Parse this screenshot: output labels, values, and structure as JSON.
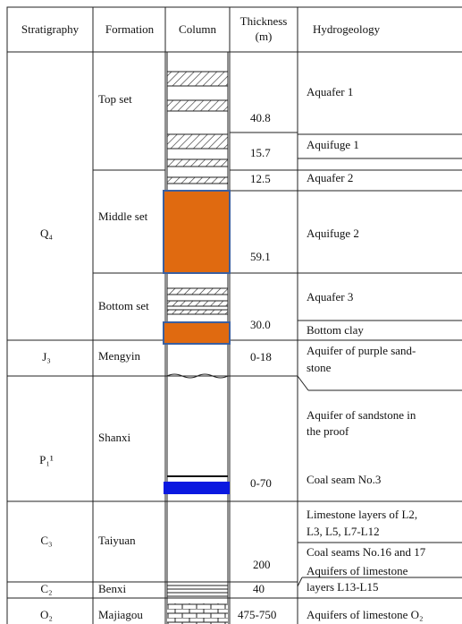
{
  "header": {
    "stratigraphy": "Stratigraphy",
    "formation": "Formation",
    "column": "Column",
    "thickness": [
      "Thickness",
      "(m)"
    ],
    "hydrogeology": "Hydrogeology"
  },
  "strata": [
    "Q₄",
    "J₃",
    "P₁¹",
    "C₃",
    "C₂",
    "O₂"
  ],
  "formations": [
    "Top set",
    "Middle set",
    "Bottom set",
    "Mengyin",
    "Shanxi",
    "Taiyuan",
    "Benxi",
    "Majiagou"
  ],
  "thickness": [
    "40.8",
    "15.7",
    "12.5",
    "59.1",
    "30.0",
    "0-18",
    "0-70",
    "200",
    "40",
    "475-750"
  ],
  "hydrogeology": [
    [
      "Aquafer 1"
    ],
    [
      "Aquifuge 1"
    ],
    [
      "Aquafer 2"
    ],
    [
      "Aquifuge 2"
    ],
    [
      "Aquafer 3"
    ],
    [
      "Bottom clay"
    ],
    [
      "Aquifer of purple sand-",
      "stone"
    ],
    [
      "Aquifer of sandstone in",
      "the proof"
    ],
    [
      "Coal seam No.3"
    ],
    [
      "Limestone layers of L2,",
      "L3, L5, L7-L12"
    ],
    [
      "Coal seams No.16 and 17"
    ],
    [
      "Aquifers of limestone",
      "layers L13-L15"
    ],
    [
      "Aquifers of limestone O₂"
    ]
  ]
}
